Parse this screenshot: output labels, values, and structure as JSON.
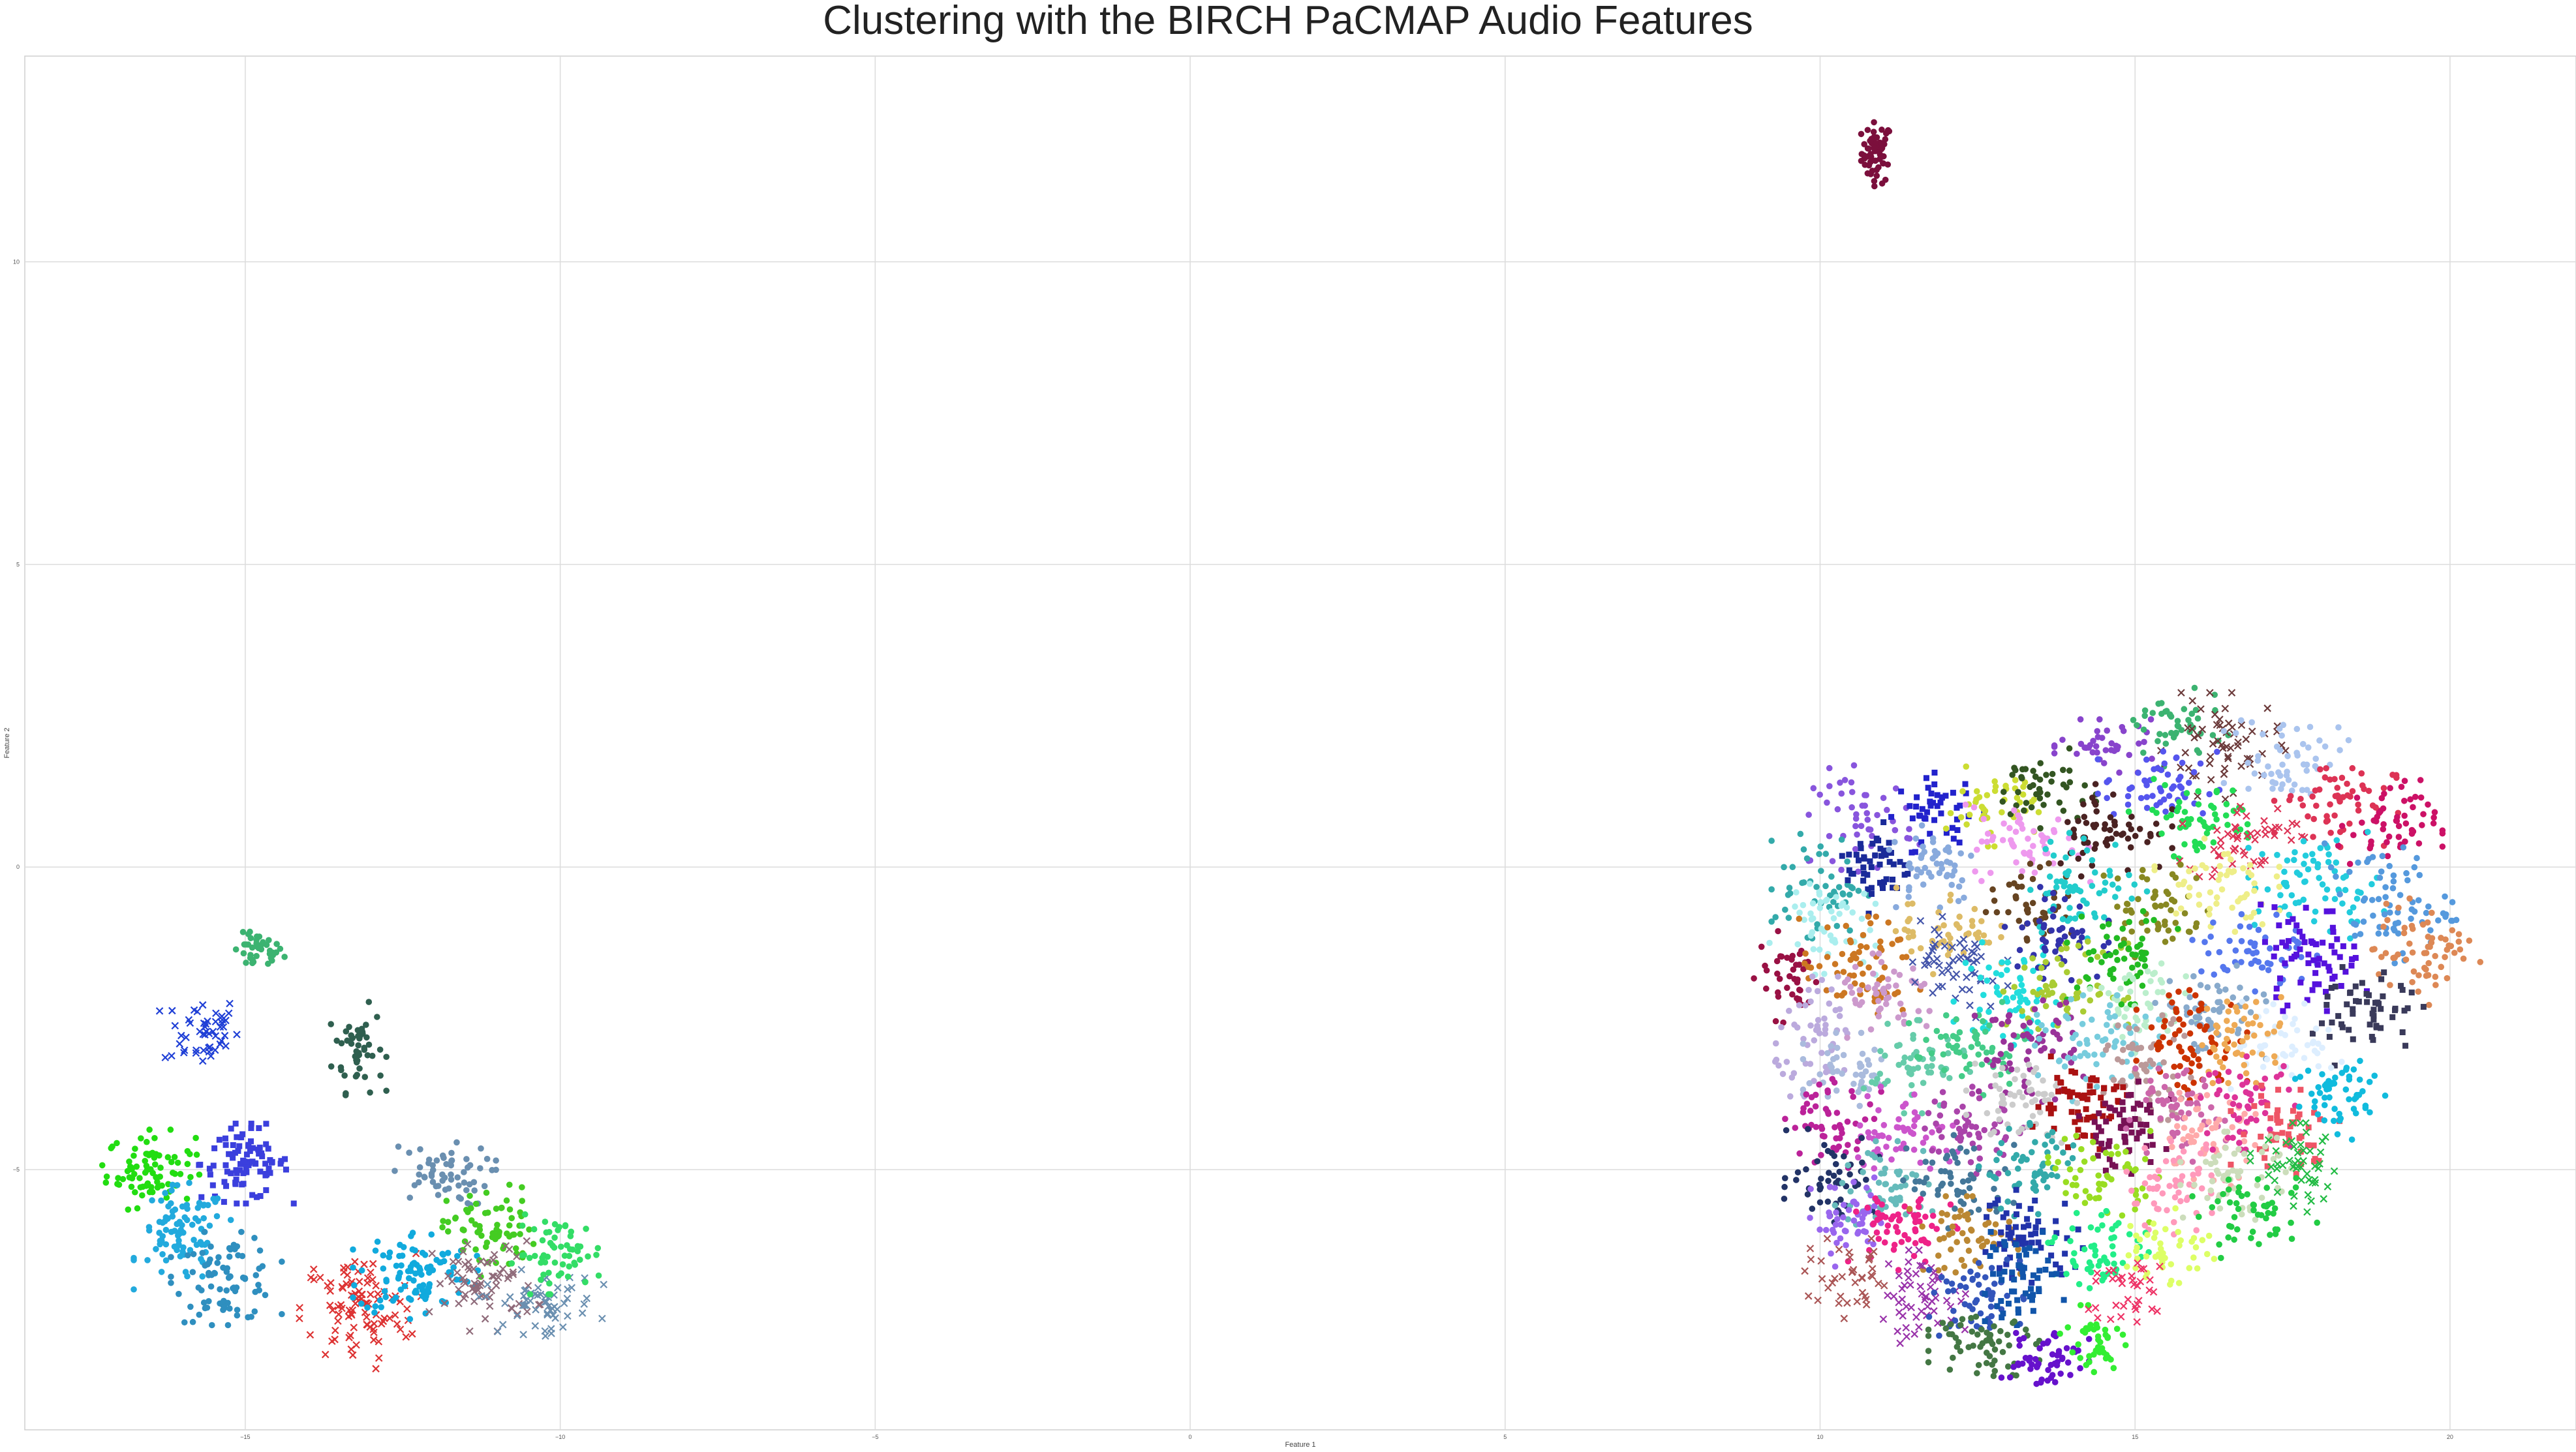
{
  "chart_data": {
    "type": "scatter",
    "title": "Clustering with the BIRCH PaCMAP Audio Features",
    "xlabel": "Feature 1",
    "ylabel": "Feature 2",
    "xlim": [
      -18.5,
      22.0
    ],
    "ylim": [
      -9.3,
      13.4
    ],
    "x_ticks": [
      -15,
      -10,
      -5,
      0,
      5,
      10,
      15,
      20
    ],
    "y_ticks": [
      -5,
      0,
      5,
      10
    ],
    "grid": true,
    "legend": "none",
    "clusters": [
      {
        "cx": 10.9,
        "cy": 11.8,
        "sx": 0.12,
        "sy": 0.25,
        "n": 60,
        "color": "#7b0f3c",
        "marker": "o"
      },
      {
        "cx": -14.8,
        "cy": -1.4,
        "sx": 0.2,
        "sy": 0.15,
        "n": 40,
        "color": "#3cb371",
        "marker": "o"
      },
      {
        "cx": -15.7,
        "cy": -2.7,
        "sx": 0.3,
        "sy": 0.3,
        "n": 50,
        "color": "#1f3fd6",
        "marker": "x"
      },
      {
        "cx": -13.2,
        "cy": -3.0,
        "sx": 0.2,
        "sy": 0.35,
        "n": 50,
        "color": "#2f5f4f",
        "marker": "o"
      },
      {
        "cx": -16.5,
        "cy": -5.0,
        "sx": 0.35,
        "sy": 0.3,
        "n": 80,
        "color": "#22dd11",
        "marker": "o"
      },
      {
        "cx": -15.0,
        "cy": -4.9,
        "sx": 0.35,
        "sy": 0.3,
        "n": 90,
        "color": "#3b3fdd",
        "marker": "s"
      },
      {
        "cx": -16.0,
        "cy": -6.1,
        "sx": 0.35,
        "sy": 0.4,
        "n": 90,
        "color": "#22aadd",
        "marker": "o"
      },
      {
        "cx": -15.3,
        "cy": -6.8,
        "sx": 0.4,
        "sy": 0.35,
        "n": 80,
        "color": "#2f8fbf",
        "marker": "o"
      },
      {
        "cx": -13.2,
        "cy": -7.3,
        "sx": 0.45,
        "sy": 0.45,
        "n": 100,
        "color": "#dd3333",
        "marker": "x"
      },
      {
        "cx": -12.3,
        "cy": -6.7,
        "sx": 0.45,
        "sy": 0.35,
        "n": 100,
        "color": "#11aadd",
        "marker": "o"
      },
      {
        "cx": -11.9,
        "cy": -5.1,
        "sx": 0.4,
        "sy": 0.25,
        "n": 60,
        "color": "#6a8fb0",
        "marker": "o"
      },
      {
        "cx": -11.1,
        "cy": -6.0,
        "sx": 0.35,
        "sy": 0.35,
        "n": 70,
        "color": "#44cc22",
        "marker": "o"
      },
      {
        "cx": -11.2,
        "cy": -6.9,
        "sx": 0.4,
        "sy": 0.35,
        "n": 70,
        "color": "#8f6b7a",
        "marker": "x"
      },
      {
        "cx": -10.3,
        "cy": -7.2,
        "sx": 0.45,
        "sy": 0.25,
        "n": 60,
        "color": "#6a8fb0",
        "marker": "x"
      },
      {
        "cx": -10.0,
        "cy": -6.4,
        "sx": 0.35,
        "sy": 0.3,
        "n": 60,
        "color": "#33dd66",
        "marker": "o"
      },
      {
        "cx": 10.7,
        "cy": 0.8,
        "sx": 0.4,
        "sy": 0.4,
        "n": 50,
        "color": "#8855dd",
        "marker": "o"
      },
      {
        "cx": 11.9,
        "cy": 0.9,
        "sx": 0.35,
        "sy": 0.3,
        "n": 45,
        "color": "#2222cc",
        "marker": "s"
      },
      {
        "cx": 12.7,
        "cy": 1.0,
        "sx": 0.35,
        "sy": 0.3,
        "n": 45,
        "color": "#ccdd33",
        "marker": "o"
      },
      {
        "cx": 13.5,
        "cy": 1.3,
        "sx": 0.4,
        "sy": 0.3,
        "n": 45,
        "color": "#335522",
        "marker": "o"
      },
      {
        "cx": 14.6,
        "cy": 2.0,
        "sx": 0.4,
        "sy": 0.2,
        "n": 40,
        "color": "#8844cc",
        "marker": "o"
      },
      {
        "cx": 15.6,
        "cy": 2.3,
        "sx": 0.4,
        "sy": 0.3,
        "n": 45,
        "color": "#3cb371",
        "marker": "o"
      },
      {
        "cx": 16.4,
        "cy": 2.0,
        "sx": 0.45,
        "sy": 0.4,
        "n": 60,
        "color": "#6b3a3a",
        "marker": "x"
      },
      {
        "cx": 17.4,
        "cy": 1.8,
        "sx": 0.45,
        "sy": 0.35,
        "n": 55,
        "color": "#aac4ee",
        "marker": "o"
      },
      {
        "cx": 18.2,
        "cy": 1.1,
        "sx": 0.45,
        "sy": 0.35,
        "n": 55,
        "color": "#dd3355",
        "marker": "o"
      },
      {
        "cx": 19.0,
        "cy": 0.7,
        "sx": 0.4,
        "sy": 0.35,
        "n": 55,
        "color": "#cc1166",
        "marker": "o"
      },
      {
        "cx": 15.4,
        "cy": 1.3,
        "sx": 0.45,
        "sy": 0.3,
        "n": 55,
        "color": "#5555ee",
        "marker": "o"
      },
      {
        "cx": 10.0,
        "cy": -0.3,
        "sx": 0.35,
        "sy": 0.4,
        "n": 50,
        "color": "#33aaaa",
        "marker": "o"
      },
      {
        "cx": 10.9,
        "cy": 0.0,
        "sx": 0.25,
        "sy": 0.35,
        "n": 50,
        "color": "#1a2a99",
        "marker": "s"
      },
      {
        "cx": 11.8,
        "cy": 0.1,
        "sx": 0.35,
        "sy": 0.35,
        "n": 50,
        "color": "#88aadd",
        "marker": "o"
      },
      {
        "cx": 13.3,
        "cy": 0.4,
        "sx": 0.45,
        "sy": 0.3,
        "n": 55,
        "color": "#ee99ee",
        "marker": "o"
      },
      {
        "cx": 14.6,
        "cy": 0.6,
        "sx": 0.45,
        "sy": 0.35,
        "n": 60,
        "color": "#4a2222",
        "marker": "o"
      },
      {
        "cx": 16.0,
        "cy": 0.8,
        "sx": 0.5,
        "sy": 0.3,
        "n": 55,
        "color": "#22dd55",
        "marker": "o"
      },
      {
        "cx": 16.7,
        "cy": 0.5,
        "sx": 0.45,
        "sy": 0.3,
        "n": 50,
        "color": "#dd3355",
        "marker": "x"
      },
      {
        "cx": 17.9,
        "cy": -0.3,
        "sx": 0.5,
        "sy": 0.4,
        "n": 70,
        "color": "#22ccdd",
        "marker": "o"
      },
      {
        "cx": 19.0,
        "cy": -0.6,
        "sx": 0.5,
        "sy": 0.45,
        "n": 70,
        "color": "#5599dd",
        "marker": "o"
      },
      {
        "cx": 19.6,
        "cy": -1.4,
        "sx": 0.4,
        "sy": 0.4,
        "n": 60,
        "color": "#dd8855",
        "marker": "o"
      },
      {
        "cx": 10.0,
        "cy": -0.9,
        "sx": 0.4,
        "sy": 0.4,
        "n": 50,
        "color": "#aaeeee",
        "marker": "o"
      },
      {
        "cx": 9.5,
        "cy": -1.8,
        "sx": 0.25,
        "sy": 0.35,
        "n": 40,
        "color": "#991144",
        "marker": "o"
      },
      {
        "cx": 10.6,
        "cy": -1.7,
        "sx": 0.45,
        "sy": 0.4,
        "n": 65,
        "color": "#cc7722",
        "marker": "o"
      },
      {
        "cx": 12.0,
        "cy": -1.0,
        "sx": 0.4,
        "sy": 0.35,
        "n": 50,
        "color": "#ddbb66",
        "marker": "o"
      },
      {
        "cx": 13.4,
        "cy": -0.6,
        "sx": 0.35,
        "sy": 0.3,
        "n": 45,
        "color": "#664422",
        "marker": "o"
      },
      {
        "cx": 14.2,
        "cy": -0.3,
        "sx": 0.45,
        "sy": 0.4,
        "n": 60,
        "color": "#22cccc",
        "marker": "o"
      },
      {
        "cx": 15.3,
        "cy": -0.7,
        "sx": 0.4,
        "sy": 0.4,
        "n": 55,
        "color": "#888822",
        "marker": "o"
      },
      {
        "cx": 16.3,
        "cy": -0.3,
        "sx": 0.45,
        "sy": 0.35,
        "n": 55,
        "color": "#eeee88",
        "marker": "o"
      },
      {
        "cx": 16.9,
        "cy": -1.4,
        "sx": 0.45,
        "sy": 0.35,
        "n": 55,
        "color": "#5577ee",
        "marker": "o"
      },
      {
        "cx": 17.8,
        "cy": -1.5,
        "sx": 0.4,
        "sy": 0.4,
        "n": 65,
        "color": "#5511dd",
        "marker": "s"
      },
      {
        "cx": 18.7,
        "cy": -2.4,
        "sx": 0.4,
        "sy": 0.4,
        "n": 55,
        "color": "#3a3a5a",
        "marker": "s"
      },
      {
        "cx": 10.0,
        "cy": -2.8,
        "sx": 0.35,
        "sy": 0.45,
        "n": 55,
        "color": "#bbaadd",
        "marker": "o"
      },
      {
        "cx": 11.1,
        "cy": -2.2,
        "sx": 0.4,
        "sy": 0.35,
        "n": 50,
        "color": "#cc99cc",
        "marker": "o"
      },
      {
        "cx": 12.1,
        "cy": -1.7,
        "sx": 0.4,
        "sy": 0.4,
        "n": 55,
        "color": "#4455aa",
        "marker": "x"
      },
      {
        "cx": 13.0,
        "cy": -2.1,
        "sx": 0.4,
        "sy": 0.4,
        "n": 60,
        "color": "#22dddd",
        "marker": "o"
      },
      {
        "cx": 13.7,
        "cy": -1.1,
        "sx": 0.4,
        "sy": 0.35,
        "n": 50,
        "color": "#3333aa",
        "marker": "o"
      },
      {
        "cx": 13.9,
        "cy": -2.0,
        "sx": 0.45,
        "sy": 0.35,
        "n": 60,
        "color": "#aacc33",
        "marker": "o"
      },
      {
        "cx": 14.8,
        "cy": -1.5,
        "sx": 0.4,
        "sy": 0.35,
        "n": 55,
        "color": "#22bb22",
        "marker": "o"
      },
      {
        "cx": 15.1,
        "cy": -2.3,
        "sx": 0.4,
        "sy": 0.35,
        "n": 50,
        "color": "#bbeecc",
        "marker": "o"
      },
      {
        "cx": 16.2,
        "cy": -2.4,
        "sx": 0.4,
        "sy": 0.35,
        "n": 55,
        "color": "#88aacc",
        "marker": "o"
      },
      {
        "cx": 17.4,
        "cy": -2.9,
        "sx": 0.4,
        "sy": 0.35,
        "n": 50,
        "color": "#ddeeff",
        "marker": "o"
      },
      {
        "cx": 10.5,
        "cy": -3.4,
        "sx": 0.35,
        "sy": 0.3,
        "n": 45,
        "color": "#aabbdd",
        "marker": "o"
      },
      {
        "cx": 11.5,
        "cy": -3.3,
        "sx": 0.4,
        "sy": 0.35,
        "n": 55,
        "color": "#66ccaa",
        "marker": "o"
      },
      {
        "cx": 12.4,
        "cy": -3.0,
        "sx": 0.45,
        "sy": 0.35,
        "n": 55,
        "color": "#44cc88",
        "marker": "o"
      },
      {
        "cx": 13.3,
        "cy": -3.0,
        "sx": 0.4,
        "sy": 0.4,
        "n": 60,
        "color": "#993399",
        "marker": "o"
      },
      {
        "cx": 14.4,
        "cy": -3.0,
        "sx": 0.45,
        "sy": 0.4,
        "n": 65,
        "color": "#77ccdd",
        "marker": "o"
      },
      {
        "cx": 15.2,
        "cy": -3.3,
        "sx": 0.4,
        "sy": 0.4,
        "n": 55,
        "color": "#bb9999",
        "marker": "o"
      },
      {
        "cx": 15.9,
        "cy": -2.9,
        "sx": 0.4,
        "sy": 0.45,
        "n": 65,
        "color": "#cc3300",
        "marker": "o"
      },
      {
        "cx": 16.7,
        "cy": -2.8,
        "sx": 0.35,
        "sy": 0.35,
        "n": 50,
        "color": "#eeaa55",
        "marker": "o"
      },
      {
        "cx": 10.2,
        "cy": -4.2,
        "sx": 0.35,
        "sy": 0.35,
        "n": 55,
        "color": "#bb2299",
        "marker": "o"
      },
      {
        "cx": 11.3,
        "cy": -4.4,
        "sx": 0.4,
        "sy": 0.35,
        "n": 55,
        "color": "#cc55cc",
        "marker": "o"
      },
      {
        "cx": 12.4,
        "cy": -4.3,
        "sx": 0.4,
        "sy": 0.35,
        "n": 55,
        "color": "#aa44aa",
        "marker": "o"
      },
      {
        "cx": 13.2,
        "cy": -3.8,
        "sx": 0.4,
        "sy": 0.35,
        "n": 55,
        "color": "#cccccc",
        "marker": "o"
      },
      {
        "cx": 14.1,
        "cy": -3.9,
        "sx": 0.35,
        "sy": 0.35,
        "n": 60,
        "color": "#aa1111",
        "marker": "s"
      },
      {
        "cx": 14.8,
        "cy": -4.3,
        "sx": 0.35,
        "sy": 0.35,
        "n": 60,
        "color": "#771155",
        "marker": "s"
      },
      {
        "cx": 15.6,
        "cy": -4.1,
        "sx": 0.4,
        "sy": 0.35,
        "n": 55,
        "color": "#cc66aa",
        "marker": "o"
      },
      {
        "cx": 16.1,
        "cy": -4.5,
        "sx": 0.4,
        "sy": 0.35,
        "n": 55,
        "color": "#ffaaaa",
        "marker": "o"
      },
      {
        "cx": 16.8,
        "cy": -3.9,
        "sx": 0.35,
        "sy": 0.35,
        "n": 50,
        "color": "#dd3399",
        "marker": "o"
      },
      {
        "cx": 17.4,
        "cy": -4.3,
        "sx": 0.4,
        "sy": 0.35,
        "n": 50,
        "color": "#ee5566",
        "marker": "s"
      },
      {
        "cx": 18.3,
        "cy": -3.8,
        "sx": 0.4,
        "sy": 0.35,
        "n": 55,
        "color": "#11bbdd",
        "marker": "o"
      },
      {
        "cx": 10.2,
        "cy": -5.1,
        "sx": 0.35,
        "sy": 0.35,
        "n": 55,
        "color": "#223366",
        "marker": "o"
      },
      {
        "cx": 11.1,
        "cy": -5.3,
        "sx": 0.4,
        "sy": 0.35,
        "n": 55,
        "color": "#66bbbb",
        "marker": "o"
      },
      {
        "cx": 12.2,
        "cy": -5.2,
        "sx": 0.4,
        "sy": 0.35,
        "n": 55,
        "color": "#447799",
        "marker": "o"
      },
      {
        "cx": 13.4,
        "cy": -5.0,
        "sx": 0.4,
        "sy": 0.35,
        "n": 55,
        "color": "#33aaaa",
        "marker": "o"
      },
      {
        "cx": 14.5,
        "cy": -5.1,
        "sx": 0.4,
        "sy": 0.35,
        "n": 55,
        "color": "#99dd22",
        "marker": "o"
      },
      {
        "cx": 15.6,
        "cy": -5.3,
        "sx": 0.4,
        "sy": 0.35,
        "n": 55,
        "color": "#ff99bb",
        "marker": "o"
      },
      {
        "cx": 16.6,
        "cy": -5.1,
        "sx": 0.4,
        "sy": 0.35,
        "n": 55,
        "color": "#ccddbb",
        "marker": "o"
      },
      {
        "cx": 17.6,
        "cy": -5.0,
        "sx": 0.35,
        "sy": 0.35,
        "n": 50,
        "color": "#22bb44",
        "marker": "x"
      },
      {
        "cx": 10.5,
        "cy": -5.9,
        "sx": 0.3,
        "sy": 0.35,
        "n": 50,
        "color": "#9966ee",
        "marker": "o"
      },
      {
        "cx": 11.3,
        "cy": -6.0,
        "sx": 0.4,
        "sy": 0.3,
        "n": 60,
        "color": "#ee2288",
        "marker": "o"
      },
      {
        "cx": 12.3,
        "cy": -6.1,
        "sx": 0.4,
        "sy": 0.3,
        "n": 55,
        "color": "#bb8833",
        "marker": "o"
      },
      {
        "cx": 13.3,
        "cy": -6.1,
        "sx": 0.4,
        "sy": 0.35,
        "n": 60,
        "color": "#2233aa",
        "marker": "s"
      },
      {
        "cx": 14.5,
        "cy": -6.3,
        "sx": 0.4,
        "sy": 0.35,
        "n": 55,
        "color": "#22ee88",
        "marker": "o"
      },
      {
        "cx": 15.5,
        "cy": -6.3,
        "sx": 0.35,
        "sy": 0.3,
        "n": 45,
        "color": "#ddff66",
        "marker": "o"
      },
      {
        "cx": 16.9,
        "cy": -5.8,
        "sx": 0.45,
        "sy": 0.3,
        "n": 50,
        "color": "#22cc44",
        "marker": "o"
      },
      {
        "cx": 10.5,
        "cy": -6.8,
        "sx": 0.35,
        "sy": 0.3,
        "n": 40,
        "color": "#aa5555",
        "marker": "x"
      },
      {
        "cx": 11.6,
        "cy": -7.1,
        "sx": 0.4,
        "sy": 0.35,
        "n": 55,
        "color": "#9933aa",
        "marker": "x"
      },
      {
        "cx": 12.5,
        "cy": -7.1,
        "sx": 0.35,
        "sy": 0.35,
        "n": 55,
        "color": "#3355bb",
        "marker": "o"
      },
      {
        "cx": 13.1,
        "cy": -6.8,
        "sx": 0.35,
        "sy": 0.35,
        "n": 55,
        "color": "#1155aa",
        "marker": "s"
      },
      {
        "cx": 12.6,
        "cy": -7.8,
        "sx": 0.4,
        "sy": 0.3,
        "n": 60,
        "color": "#447744",
        "marker": "o"
      },
      {
        "cx": 13.5,
        "cy": -8.1,
        "sx": 0.35,
        "sy": 0.25,
        "n": 55,
        "color": "#6611cc",
        "marker": "o"
      },
      {
        "cx": 14.3,
        "cy": -7.9,
        "sx": 0.25,
        "sy": 0.3,
        "n": 40,
        "color": "#33ee33",
        "marker": "o"
      },
      {
        "cx": 14.9,
        "cy": -7.0,
        "sx": 0.35,
        "sy": 0.3,
        "n": 35,
        "color": "#ee3366",
        "marker": "x"
      }
    ]
  }
}
